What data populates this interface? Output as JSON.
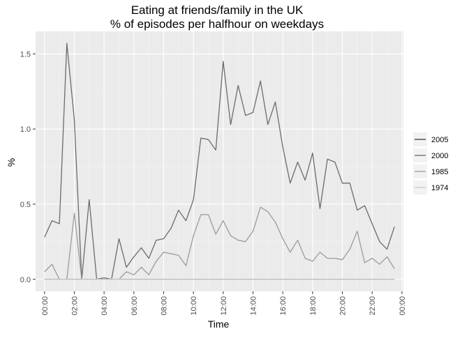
{
  "chart_data": {
    "type": "line",
    "title": "Eating at friends/family in the UK",
    "subtitle": "% of episodes per halfhour on weekdays",
    "xlabel": "Time",
    "ylabel": "%",
    "x_tick_labels": [
      "00:00",
      "02:00",
      "04:00",
      "06:00",
      "08:00",
      "10:00",
      "12:00",
      "14:00",
      "16:00",
      "18:00",
      "20:00",
      "22:00",
      "00:00"
    ],
    "y_ticks": [
      0.0,
      0.5,
      1.0,
      1.5
    ],
    "y_tick_labels": [
      "0.0",
      "0.5",
      "1.0",
      "1.5"
    ],
    "ylim": [
      -0.08,
      1.65
    ],
    "xlim_halfhours": [
      -1.2,
      48.2
    ],
    "grid": true,
    "legend_position": "right",
    "x": [
      0,
      0.5,
      1,
      1.5,
      2,
      2.5,
      3,
      3.5,
      4,
      4.5,
      5,
      5.5,
      6,
      6.5,
      7,
      7.5,
      8,
      8.5,
      9,
      9.5,
      10,
      10.5,
      11,
      11.5,
      12,
      12.5,
      13,
      13.5,
      14,
      14.5,
      15,
      15.5,
      16,
      16.5,
      17,
      17.5,
      18,
      18.5,
      19,
      19.5,
      20,
      20.5,
      21,
      21.5,
      22,
      22.5,
      23,
      23.5
    ],
    "series": [
      {
        "name": "2005",
        "color": "#3a3a3a",
        "values": [
          0,
          0,
          0,
          0,
          0,
          0,
          0,
          0,
          0,
          0,
          0,
          0,
          0,
          0,
          0,
          0,
          0,
          0,
          0,
          0,
          0,
          0,
          0,
          0,
          0,
          0,
          0,
          0,
          0,
          0,
          0,
          0,
          0,
          0,
          0,
          0,
          0,
          0,
          0,
          0,
          0,
          0,
          0,
          0,
          0,
          0,
          0,
          0
        ]
      },
      {
        "name": "2000",
        "color": "#6b6b6b",
        "values": [
          0.28,
          0.39,
          0.37,
          1.57,
          1.06,
          0.0,
          0.53,
          0.0,
          0.01,
          0.0,
          0.27,
          0.08,
          0.15,
          0.21,
          0.14,
          0.26,
          0.27,
          0.34,
          0.46,
          0.39,
          0.53,
          0.94,
          0.93,
          0.86,
          1.45,
          1.03,
          1.29,
          1.09,
          1.11,
          1.32,
          1.03,
          1.18,
          0.88,
          0.64,
          0.78,
          0.66,
          0.84,
          0.47,
          0.8,
          0.78,
          0.64,
          0.64,
          0.46,
          0.49,
          0.37,
          0.25,
          0.2,
          0.35
        ]
      },
      {
        "name": "1985",
        "color": "#9b9b9b",
        "values": [
          0.05,
          0.1,
          0.0,
          0.0,
          0.44,
          0.0,
          0.0,
          0.0,
          0.0,
          0.0,
          0.0,
          0.05,
          0.03,
          0.08,
          0.03,
          0.12,
          0.18,
          0.17,
          0.16,
          0.09,
          0.29,
          0.43,
          0.43,
          0.3,
          0.39,
          0.29,
          0.26,
          0.25,
          0.32,
          0.48,
          0.45,
          0.38,
          0.27,
          0.18,
          0.26,
          0.14,
          0.12,
          0.18,
          0.14,
          0.14,
          0.13,
          0.2,
          0.32,
          0.11,
          0.14,
          0.1,
          0.15,
          0.07
        ]
      },
      {
        "name": "1974",
        "color": "#c8c8c8",
        "values": [
          0,
          0,
          0,
          0,
          0,
          0,
          0,
          0,
          0,
          0,
          0,
          0,
          0,
          0,
          0,
          0,
          0,
          0,
          0,
          0,
          0,
          0,
          0,
          0,
          0,
          0,
          0,
          0,
          0,
          0,
          0,
          0,
          0,
          0,
          0,
          0,
          0,
          0,
          0,
          0,
          0,
          0,
          0,
          0,
          0,
          0,
          0,
          0
        ]
      }
    ]
  },
  "colors": {
    "panel_background": "#ebebeb",
    "grid_major": "#ffffff",
    "grid_minor": "#f5f5f5",
    "legend_key_background": "#f2f2f2"
  }
}
